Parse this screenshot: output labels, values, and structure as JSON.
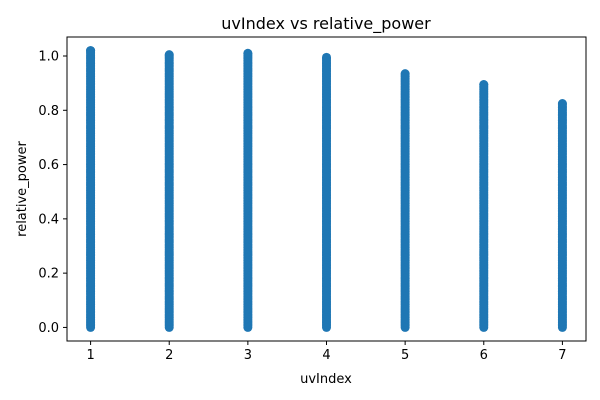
{
  "chart_data": {
    "type": "scatter",
    "title": "uvIndex vs relative_power",
    "xlabel": "uvIndex",
    "ylabel": "relative_power",
    "xlim": [
      0.7,
      7.3
    ],
    "ylim": [
      -0.05,
      1.07
    ],
    "x_ticks": [
      "1",
      "2",
      "3",
      "4",
      "5",
      "6",
      "7"
    ],
    "y_ticks": [
      "0.0",
      "0.2",
      "0.4",
      "0.6",
      "0.8",
      "1.0"
    ],
    "grid": false,
    "marker_color": "#1f77b4",
    "columns": [
      {
        "x": 1,
        "min": 0.0,
        "max": 1.02
      },
      {
        "x": 2,
        "min": 0.0,
        "max": 1.005
      },
      {
        "x": 3,
        "min": 0.0,
        "max": 1.01
      },
      {
        "x": 4,
        "min": 0.0,
        "max": 0.995
      },
      {
        "x": 5,
        "min": 0.0,
        "max": 0.935
      },
      {
        "x": 6,
        "min": 0.0,
        "max": 0.895
      },
      {
        "x": 7,
        "min": 0.0,
        "max": 0.825
      }
    ]
  }
}
